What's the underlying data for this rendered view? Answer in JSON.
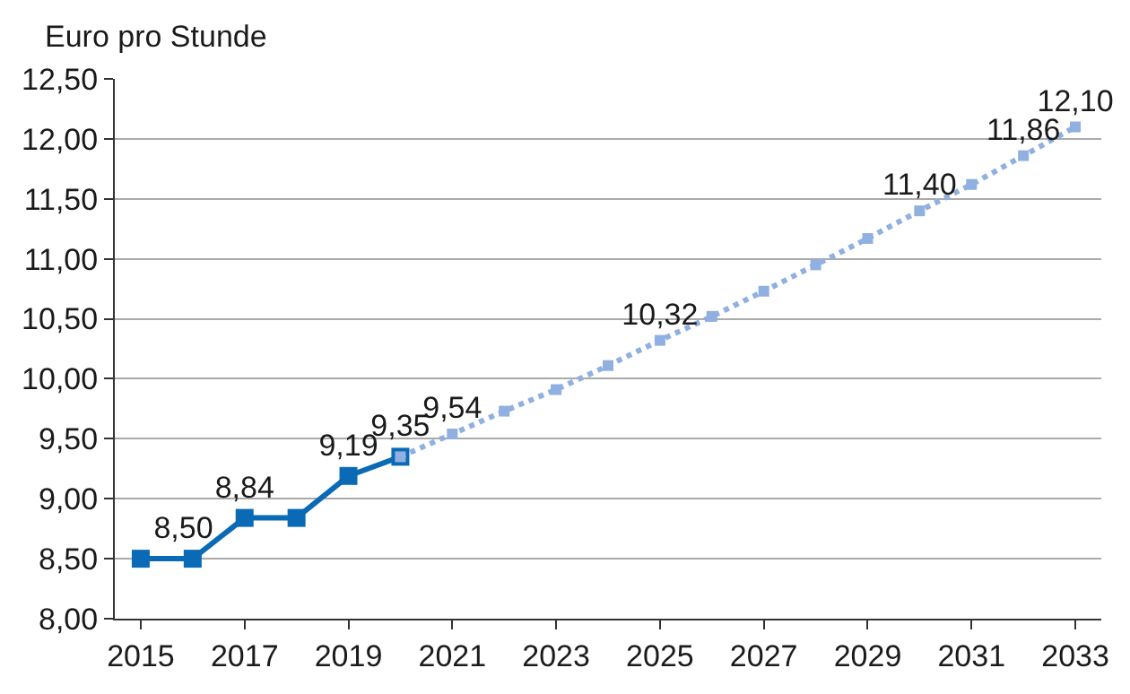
{
  "chart_data": {
    "type": "line",
    "ylabel": "Euro pro Stunde",
    "xlim": [
      2014.5,
      2033.5
    ],
    "xticks": [
      2015,
      2017,
      2019,
      2021,
      2023,
      2025,
      2027,
      2029,
      2031,
      2033
    ],
    "ylim": [
      8.0,
      12.5
    ],
    "yticks": [
      {
        "value": 8.0,
        "label": "8,00"
      },
      {
        "value": 8.5,
        "label": "8,50"
      },
      {
        "value": 9.0,
        "label": "9,00"
      },
      {
        "value": 9.5,
        "label": "9,50"
      },
      {
        "value": 10.0,
        "label": "10,00"
      },
      {
        "value": 10.5,
        "label": "10,50"
      },
      {
        "value": 11.0,
        "label": "11,00"
      },
      {
        "value": 11.5,
        "label": "11,50"
      },
      {
        "value": 12.0,
        "label": "12,00"
      },
      {
        "value": 12.5,
        "label": "12,50"
      }
    ],
    "grid": "y",
    "marker": "square",
    "series": [
      {
        "color": "#0a6ab5",
        "line_style": "solid",
        "x": [
          2015,
          2016,
          2017,
          2018,
          2019,
          2020
        ],
        "values": [
          8.5,
          8.5,
          8.84,
          8.84,
          9.19,
          9.35
        ],
        "value_labels": [
          "8,50",
          null,
          "8,84",
          null,
          "9,19",
          "9,35"
        ]
      },
      {
        "color": "#8fb0e0",
        "line_style": "dotted",
        "x": [
          2020,
          2021,
          2022,
          2023,
          2024,
          2025,
          2026,
          2027,
          2028,
          2029,
          2030,
          2031,
          2032,
          2033
        ],
        "values": [
          9.35,
          9.54,
          9.73,
          9.91,
          10.11,
          10.32,
          10.52,
          10.73,
          10.95,
          11.17,
          11.4,
          11.62,
          11.86,
          12.1
        ],
        "value_labels": [
          null,
          "9,54",
          null,
          null,
          null,
          "10,32",
          null,
          null,
          null,
          null,
          "11,40",
          null,
          "11,86",
          "12,10"
        ]
      }
    ]
  }
}
